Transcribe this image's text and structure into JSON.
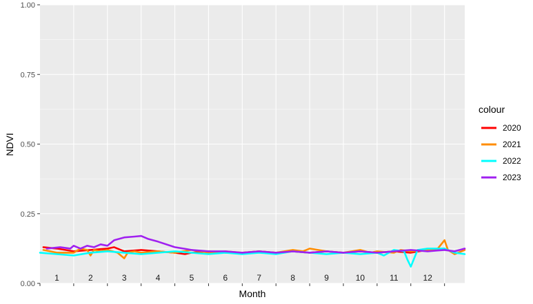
{
  "chart_data": {
    "type": "line",
    "xlabel": "Month",
    "ylabel": "NDVI",
    "ylim": [
      0,
      1
    ],
    "y_ticks": [
      "0.00",
      "0.25",
      "0.50",
      "0.75",
      "1.00"
    ],
    "categories": [
      "1",
      "2",
      "3",
      "4",
      "5",
      "6",
      "7",
      "8",
      "9",
      "10",
      "11",
      "12"
    ],
    "grid": true,
    "legend": {
      "title": "colour",
      "position": "right"
    },
    "colors": {
      "panel": "#ebebeb",
      "grid": "#ffffff"
    },
    "series": [
      {
        "name": "2020",
        "color": "#ff0000",
        "x": [
          0.1,
          0.5,
          1.0,
          1.5,
          2.0,
          2.2,
          2.5,
          3.0,
          3.5,
          4.0,
          4.3,
          4.5,
          5.0,
          5.5,
          6.0,
          6.5,
          7.0,
          7.5,
          8.0,
          8.5,
          9.0,
          9.5,
          10.0,
          10.5,
          11.0,
          11.5,
          12.0
        ],
        "values": [
          0.13,
          0.125,
          0.115,
          0.12,
          0.125,
          0.13,
          0.115,
          0.12,
          0.115,
          0.11,
          0.105,
          0.11,
          0.115,
          0.11,
          0.11,
          0.115,
          0.11,
          0.115,
          0.11,
          0.115,
          0.11,
          0.115,
          0.11,
          0.115,
          0.11,
          0.12,
          0.125
        ]
      },
      {
        "name": "2021",
        "color": "#ff8c00",
        "x": [
          0.1,
          0.5,
          1.0,
          1.2,
          1.4,
          1.5,
          1.6,
          1.8,
          2.0,
          2.3,
          2.5,
          2.6,
          2.8,
          3.0,
          3.5,
          4.0,
          4.5,
          5.0,
          5.5,
          6.0,
          6.5,
          7.0,
          7.5,
          7.8,
          8.0,
          8.5,
          9.0,
          9.5,
          9.8,
          10.0,
          10.5,
          10.7,
          11.0,
          11.5,
          11.8,
          12.0,
          12.1,
          12.3,
          12.6
        ],
        "values": [
          0.12,
          0.11,
          0.11,
          0.125,
          0.12,
          0.1,
          0.12,
          0.115,
          0.12,
          0.11,
          0.09,
          0.11,
          0.115,
          0.11,
          0.115,
          0.11,
          0.12,
          0.11,
          0.115,
          0.11,
          0.115,
          0.11,
          0.12,
          0.115,
          0.125,
          0.115,
          0.11,
          0.12,
          0.11,
          0.115,
          0.11,
          0.12,
          0.115,
          0.12,
          0.125,
          0.155,
          0.12,
          0.105,
          0.12
        ]
      },
      {
        "name": "2022",
        "color": "#00ffff",
        "x": [
          0.0,
          0.5,
          1.0,
          1.5,
          2.0,
          2.5,
          3.0,
          3.5,
          4.0,
          4.5,
          5.0,
          5.5,
          6.0,
          6.5,
          7.0,
          7.5,
          8.0,
          8.5,
          9.0,
          9.5,
          10.0,
          10.2,
          10.5,
          10.8,
          10.9,
          11.0,
          11.2,
          11.5,
          12.0,
          12.3,
          12.6
        ],
        "values": [
          0.11,
          0.105,
          0.1,
          0.11,
          0.115,
          0.11,
          0.105,
          0.11,
          0.115,
          0.11,
          0.105,
          0.11,
          0.105,
          0.11,
          0.105,
          0.115,
          0.11,
          0.105,
          0.11,
          0.105,
          0.11,
          0.1,
          0.12,
          0.115,
          0.085,
          0.06,
          0.12,
          0.125,
          0.125,
          0.11,
          0.105
        ]
      },
      {
        "name": "2023",
        "color": "#a020f0",
        "x": [
          0.2,
          0.6,
          0.9,
          1.0,
          1.2,
          1.4,
          1.6,
          1.8,
          2.0,
          2.2,
          2.5,
          2.8,
          3.0,
          3.2,
          3.5,
          4.0,
          4.5,
          5.0,
          5.5,
          6.0,
          6.5,
          7.0,
          7.5,
          8.0,
          8.5,
          9.0,
          9.5,
          10.0,
          10.5,
          11.0,
          11.5,
          12.0,
          12.3,
          12.6
        ],
        "values": [
          0.125,
          0.13,
          0.125,
          0.135,
          0.125,
          0.135,
          0.13,
          0.14,
          0.135,
          0.155,
          0.165,
          0.168,
          0.17,
          0.16,
          0.15,
          0.13,
          0.12,
          0.115,
          0.115,
          0.11,
          0.115,
          0.11,
          0.115,
          0.11,
          0.115,
          0.11,
          0.115,
          0.11,
          0.115,
          0.12,
          0.115,
          0.12,
          0.115,
          0.125
        ]
      }
    ]
  }
}
